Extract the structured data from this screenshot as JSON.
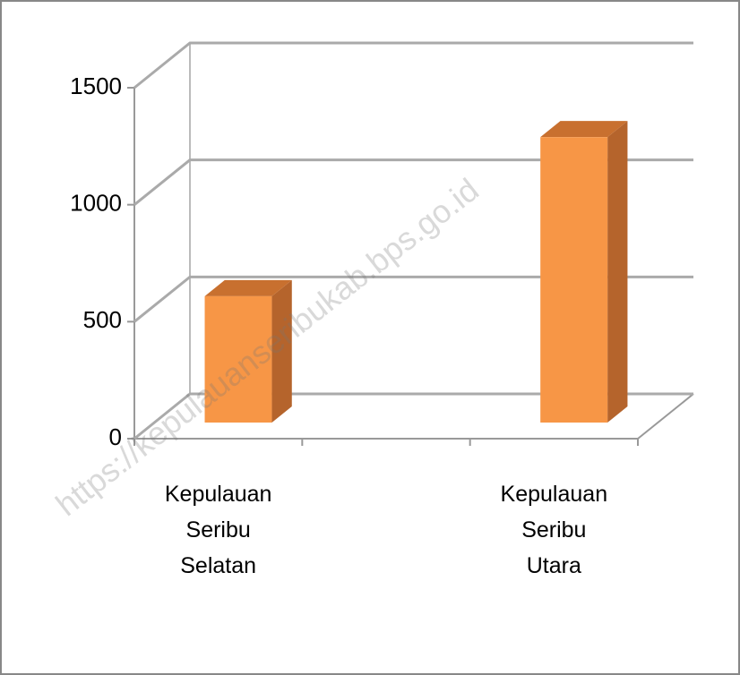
{
  "chart_data": {
    "type": "bar3d",
    "categories": [
      "Kepulauan Seribu Selatan",
      null,
      "Kepulauan Seribu Utara"
    ],
    "values": [
      540,
      null,
      1220
    ],
    "color": "#f79646",
    "ylim": [
      0,
      1500
    ],
    "yticks": [
      0,
      500,
      1000,
      1500
    ],
    "grid": true,
    "watermark": "https://kepulauanseribukab.bps.go.id"
  }
}
